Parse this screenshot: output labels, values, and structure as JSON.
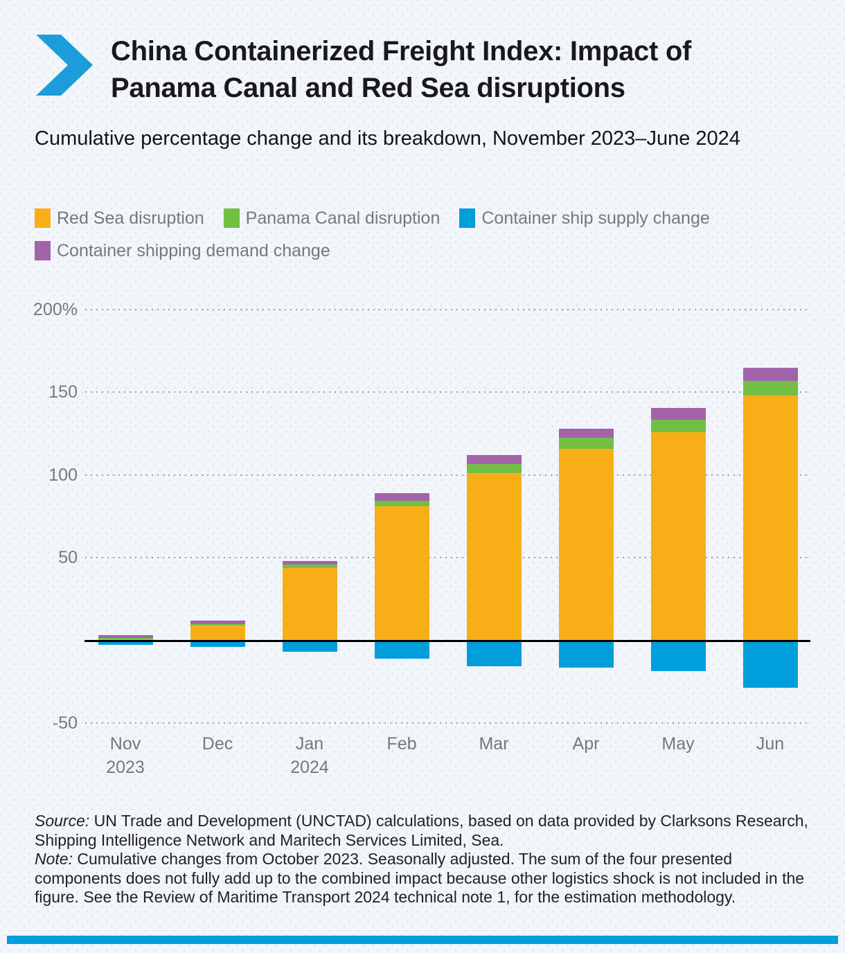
{
  "header": {
    "title": "China Containerized Freight Index: Impact of Panama Canal and Red Sea disruptions",
    "subtitle": "Cumulative percentage change and its breakdown, November 2023–June 2024",
    "chevron_color": "#1b9dd9"
  },
  "legend": [
    {
      "label": "Red Sea disruption",
      "color": "#f9ae18"
    },
    {
      "label": "Panama Canal disruption",
      "color": "#72bf44"
    },
    {
      "label": "Container ship supply change",
      "color": "#009edb"
    },
    {
      "label": "Container shipping demand change",
      "color": "#a263a9"
    }
  ],
  "chart_data": {
    "type": "bar",
    "stacked": true,
    "title": "China Containerized Freight Index: Impact of Panama Canal and Red Sea disruptions",
    "subtitle": "Cumulative percentage change and its breakdown, November 2023–June 2024",
    "categories": [
      "Nov",
      "Dec",
      "Jan",
      "Feb",
      "Mar",
      "Apr",
      "May",
      "Jun"
    ],
    "category_sublabels": [
      "2023",
      "",
      "2024",
      "",
      "",
      "",
      "",
      ""
    ],
    "unit": "%",
    "series": [
      {
        "name": "Red Sea disruption",
        "color": "#f9ae18",
        "values": [
          0.5,
          9,
          44,
          81,
          101,
          116,
          126,
          148
        ]
      },
      {
        "name": "Panama Canal disruption",
        "color": "#72bf44",
        "values": [
          1,
          1,
          2,
          3.5,
          5.5,
          6.5,
          7.5,
          9
        ]
      },
      {
        "name": "Container ship supply change",
        "color": "#009edb",
        "values": [
          -2.5,
          -4,
          -7,
          -11,
          -15.5,
          -16.5,
          -18.5,
          -28.5
        ]
      },
      {
        "name": "Container shipping demand change",
        "color": "#a263a9",
        "values": [
          1.5,
          2,
          2,
          4.5,
          5.5,
          5.5,
          7,
          8
        ]
      }
    ],
    "positive_stack_order": [
      0,
      1,
      3
    ],
    "negative_series_index": 2,
    "y_axis": {
      "min": -50,
      "max": 200,
      "ticks": [
        200,
        150,
        100,
        50,
        -50
      ],
      "tick_labels": [
        "200%",
        "150",
        "100",
        "50",
        "-50"
      ],
      "grid": "dotted",
      "zero_line": true
    },
    "legend_position": "top"
  },
  "footer": {
    "source_label": "Source:",
    "source_text": " UN Trade and Development (UNCTAD) calculations, based on data provided by Clarksons Research, Shipping Intelligence Network and Maritech Services Limited, Sea.",
    "note_label": "Note:",
    "note_text": " Cumulative changes from October 2023. Seasonally adjusted. The sum of the four presented components does not fully add up to the combined impact because other logistics shock is not included in the figure. See the Review of Maritime Transport 2024 technical note 1, for the estimation methodology."
  },
  "bottom_bar_color": "#009edb"
}
